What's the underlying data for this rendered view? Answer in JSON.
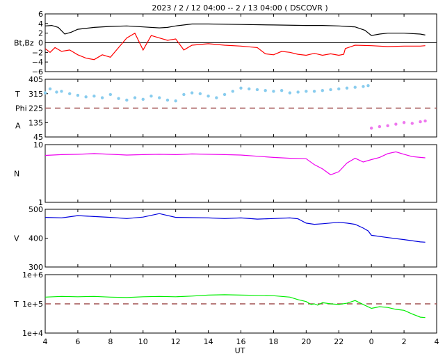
{
  "title": "2023 /  2 / 12   04:00 --  2 / 13   04:00 ( DSCOVR )",
  "x_axis": {
    "label": "UT",
    "range_hours": [
      4,
      28
    ],
    "ticks": [
      {
        "h": 4,
        "label": "4"
      },
      {
        "h": 6,
        "label": "6"
      },
      {
        "h": 8,
        "label": "8"
      },
      {
        "h": 10,
        "label": "10"
      },
      {
        "h": 12,
        "label": "12"
      },
      {
        "h": 14,
        "label": "14"
      },
      {
        "h": 16,
        "label": "16"
      },
      {
        "h": 18,
        "label": "18"
      },
      {
        "h": 20,
        "label": "20"
      },
      {
        "h": 22,
        "label": "22"
      },
      {
        "h": 24,
        "label": "0"
      },
      {
        "h": 26,
        "label": "2"
      },
      {
        "h": 28,
        "label": "4"
      }
    ]
  },
  "colors": {
    "bt": "#000000",
    "bz": "#ff0000",
    "phi_t": "#88ccee",
    "phi_a": "#ee77ee",
    "density": "#ee00ee",
    "speed": "#0000dd",
    "temperature": "#00ee00",
    "dashed": "#a05050"
  },
  "chart_data": [
    {
      "type": "line",
      "ylabel": "Bt,Bz",
      "ylim": [
        -6,
        6
      ],
      "yticks": [
        6,
        4,
        2,
        0,
        -2,
        -4,
        -6
      ],
      "ytick_labels": [
        "6",
        "4",
        "2",
        "0",
        "−2",
        "−4",
        "−6"
      ],
      "zero_line": 0,
      "series": [
        {
          "key": "bt",
          "x": [
            4.0,
            4.4,
            4.8,
            5.2,
            5.6,
            6.0,
            7,
            8,
            9,
            10,
            11,
            11.5,
            12,
            13,
            14,
            16,
            18,
            20,
            21,
            22,
            23,
            23.6,
            24,
            24.5,
            25,
            26,
            27,
            27.3
          ],
          "y": [
            3.5,
            3.6,
            3.2,
            1.8,
            2.2,
            2.8,
            3.2,
            3.4,
            3.5,
            3.3,
            3.1,
            3.2,
            3.5,
            3.9,
            3.9,
            3.8,
            3.7,
            3.6,
            3.6,
            3.5,
            3.3,
            2.6,
            1.5,
            1.8,
            2.0,
            2.0,
            1.8,
            1.6
          ]
        },
        {
          "key": "bz",
          "x": [
            4.0,
            4.3,
            4.6,
            5.0,
            5.5,
            6.0,
            6.5,
            7.0,
            7.5,
            8,
            8.5,
            9,
            9.5,
            10,
            10.5,
            11,
            11.5,
            12,
            12.5,
            13,
            14,
            15,
            16,
            17,
            17.5,
            18,
            18.5,
            19,
            19.5,
            20,
            20.5,
            21,
            21.5,
            22,
            22.3,
            22.4,
            23,
            24,
            25,
            26,
            27,
            27.3
          ],
          "y": [
            -1.2,
            -2.0,
            -1.0,
            -1.8,
            -1.5,
            -2.5,
            -3.2,
            -3.5,
            -2.5,
            -3.0,
            -1.0,
            1.0,
            2.0,
            -1.5,
            1.5,
            1.0,
            0.5,
            0.8,
            -1.5,
            -0.5,
            -0.2,
            -0.5,
            -0.7,
            -1.0,
            -2.3,
            -2.5,
            -1.8,
            -2.0,
            -2.4,
            -2.6,
            -2.2,
            -2.6,
            -2.3,
            -2.6,
            -2.4,
            -1.2,
            -0.5,
            -0.6,
            -0.8,
            -0.7,
            -0.7,
            -0.6
          ]
        }
      ]
    },
    {
      "type": "scatter",
      "ylabel_lines": [
        "T",
        "Phi",
        "A"
      ],
      "ylim": [
        45,
        405
      ],
      "yticks": [
        405,
        315,
        225,
        135,
        45
      ],
      "ytick_labels": [
        "405",
        "315",
        "225",
        "135",
        "45"
      ],
      "dashed_line": 225,
      "series": [
        {
          "key": "phi_t",
          "x": [
            4.0,
            4.3,
            4.7,
            5.0,
            5.5,
            6.0,
            6.5,
            7.0,
            7.5,
            8.0,
            8.5,
            9.0,
            9.5,
            10.0,
            10.5,
            11.0,
            11.5,
            12.0,
            12.5,
            13.0,
            13.5,
            14.0,
            14.5,
            15.0,
            15.5,
            16.0,
            16.5,
            17.0,
            17.5,
            18.0,
            18.5,
            19.0,
            19.5,
            20.0,
            20.5,
            21.0,
            21.5,
            22.0,
            22.5,
            23.0,
            23.5,
            23.8
          ],
          "y": [
            320,
            345,
            325,
            330,
            315,
            305,
            295,
            300,
            290,
            310,
            285,
            275,
            290,
            280,
            300,
            290,
            275,
            270,
            310,
            320,
            315,
            300,
            290,
            310,
            330,
            350,
            345,
            340,
            335,
            330,
            335,
            320,
            325,
            330,
            330,
            335,
            340,
            345,
            350,
            355,
            360,
            365
          ]
        },
        {
          "key": "phi_a",
          "x": [
            24.0,
            24.5,
            25.0,
            25.5,
            26.0,
            26.5,
            27.0,
            27.3
          ],
          "y": [
            100,
            110,
            115,
            125,
            135,
            130,
            140,
            145
          ]
        }
      ]
    },
    {
      "type": "line",
      "ylabel": "N",
      "ylog": true,
      "ylim": [
        1,
        10
      ],
      "yticks": [
        10,
        1
      ],
      "ytick_labels": [
        "10",
        "1"
      ],
      "series": [
        {
          "key": "density",
          "x": [
            4.0,
            5,
            6,
            7,
            8,
            9,
            10,
            11,
            12,
            13,
            14,
            15,
            16,
            17,
            18,
            19,
            20,
            20.5,
            21,
            21.5,
            22,
            22.5,
            23,
            23.5,
            24,
            24.5,
            25,
            25.5,
            26,
            26.5,
            27,
            27.3
          ],
          "y": [
            6.5,
            6.7,
            6.8,
            7.0,
            6.8,
            6.6,
            6.7,
            6.8,
            6.7,
            6.9,
            6.8,
            6.7,
            6.6,
            6.3,
            6.0,
            5.8,
            5.7,
            4.5,
            3.8,
            3.0,
            3.4,
            4.8,
            5.8,
            5.0,
            5.5,
            6.0,
            7.0,
            7.5,
            6.8,
            6.2,
            6.0,
            5.9
          ]
        }
      ]
    },
    {
      "type": "line",
      "ylabel": "V",
      "ylim": [
        300,
        500
      ],
      "yticks": [
        500,
        400,
        300
      ],
      "ytick_labels": [
        "500",
        "400",
        "300"
      ],
      "series": [
        {
          "key": "speed",
          "x": [
            4.0,
            5,
            6,
            7,
            8,
            9,
            10,
            11,
            12,
            13,
            14,
            15,
            16,
            17,
            18,
            19,
            19.5,
            20,
            20.5,
            21,
            22,
            22.5,
            23,
            23.5,
            23.8,
            24,
            25,
            26,
            27,
            27.3
          ],
          "y": [
            472,
            470,
            478,
            475,
            472,
            468,
            473,
            485,
            472,
            471,
            470,
            468,
            470,
            466,
            468,
            470,
            467,
            452,
            448,
            450,
            455,
            452,
            448,
            435,
            425,
            410,
            402,
            395,
            387,
            386
          ]
        }
      ]
    },
    {
      "type": "line",
      "ylabel": "T",
      "ylog": true,
      "ylim": [
        10000,
        1000000
      ],
      "yticks": [
        1000000,
        100000,
        10000
      ],
      "ytick_labels": [
        "1e+6",
        "1e+5",
        "1e+4"
      ],
      "dashed_line": 100000,
      "series": [
        {
          "key": "temperature",
          "x": [
            4.0,
            5,
            6,
            7,
            8,
            9,
            10,
            11,
            12,
            13,
            14,
            15,
            16,
            17,
            18,
            19,
            19.5,
            20,
            20.3,
            20.5,
            20.7,
            21,
            21.5,
            22,
            22.5,
            23,
            23.5,
            24,
            24.5,
            25,
            25.5,
            26,
            26.5,
            27,
            27.3
          ],
          "y": [
            170000,
            180000,
            175000,
            180000,
            170000,
            165000,
            175000,
            180000,
            175000,
            185000,
            200000,
            205000,
            200000,
            195000,
            190000,
            170000,
            140000,
            120000,
            95000,
            100000,
            90000,
            110000,
            100000,
            95000,
            105000,
            130000,
            95000,
            70000,
            80000,
            75000,
            65000,
            60000,
            45000,
            35000,
            34000
          ]
        }
      ]
    }
  ]
}
